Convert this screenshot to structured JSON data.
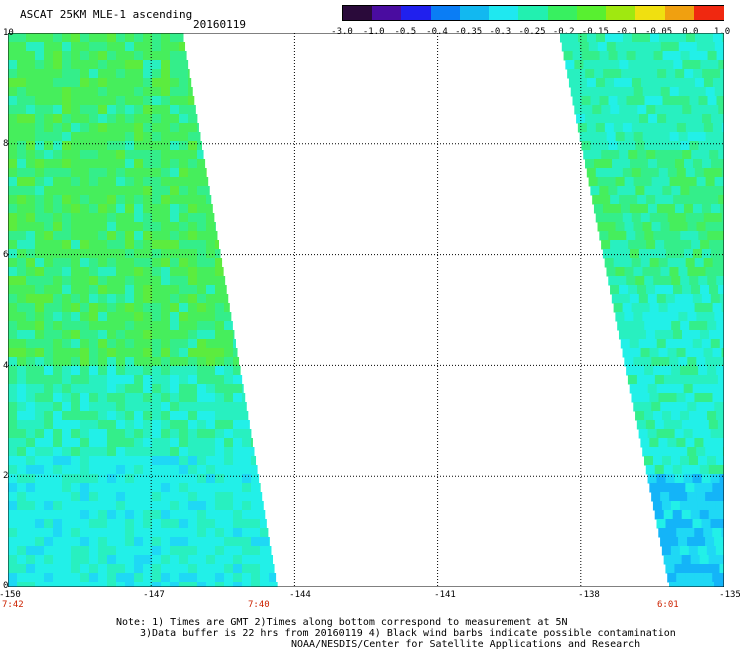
{
  "header": {
    "title": "ASCAT 25KM MLE-1 ascending",
    "date": "20160119"
  },
  "colorbar": {
    "ticks": [
      "-3.0",
      "-1.0",
      "-0.5",
      "-0.4",
      "-0.35",
      "-0.3",
      "-0.25",
      "-0.2",
      "-0.15",
      "-0.1",
      "-0.05",
      "0.0",
      "1.0"
    ],
    "colors": [
      "#2a0a3a",
      "#4a0ca0",
      "#2020ee",
      "#0a7df5",
      "#12b8f0",
      "#1fe8f0",
      "#22f0b0",
      "#38f060",
      "#58f030",
      "#a0e810",
      "#f0e010",
      "#f0a010",
      "#f02810"
    ]
  },
  "map": {
    "y_ticks": [
      "10",
      "8",
      "6",
      "4",
      "2",
      "0"
    ],
    "x_ticks": [
      "-150",
      "-147",
      "-144",
      "-141",
      "-138",
      "-135"
    ],
    "x_range": [
      -150,
      -135
    ],
    "y_range": [
      0,
      10
    ],
    "grid": "dotted",
    "time_labels": [
      "7:42",
      "7:40",
      "6:01"
    ],
    "swath_colors": [
      "#22f0e8",
      "#28f0c0",
      "#34ee8a",
      "#46ee5c",
      "#5cec3e",
      "#1fd8f5",
      "#14b4f8"
    ]
  },
  "notes": {
    "line1": "Note: 1) Times are GMT 2)Times along bottom correspond to measurement at 5N",
    "line2": "3)Data buffer is 22 hrs from 20160119 4) Black wind barbs indicate possible contamination",
    "line3": "NOAA/NESDIS/Center for Satellite Applications and Research"
  }
}
